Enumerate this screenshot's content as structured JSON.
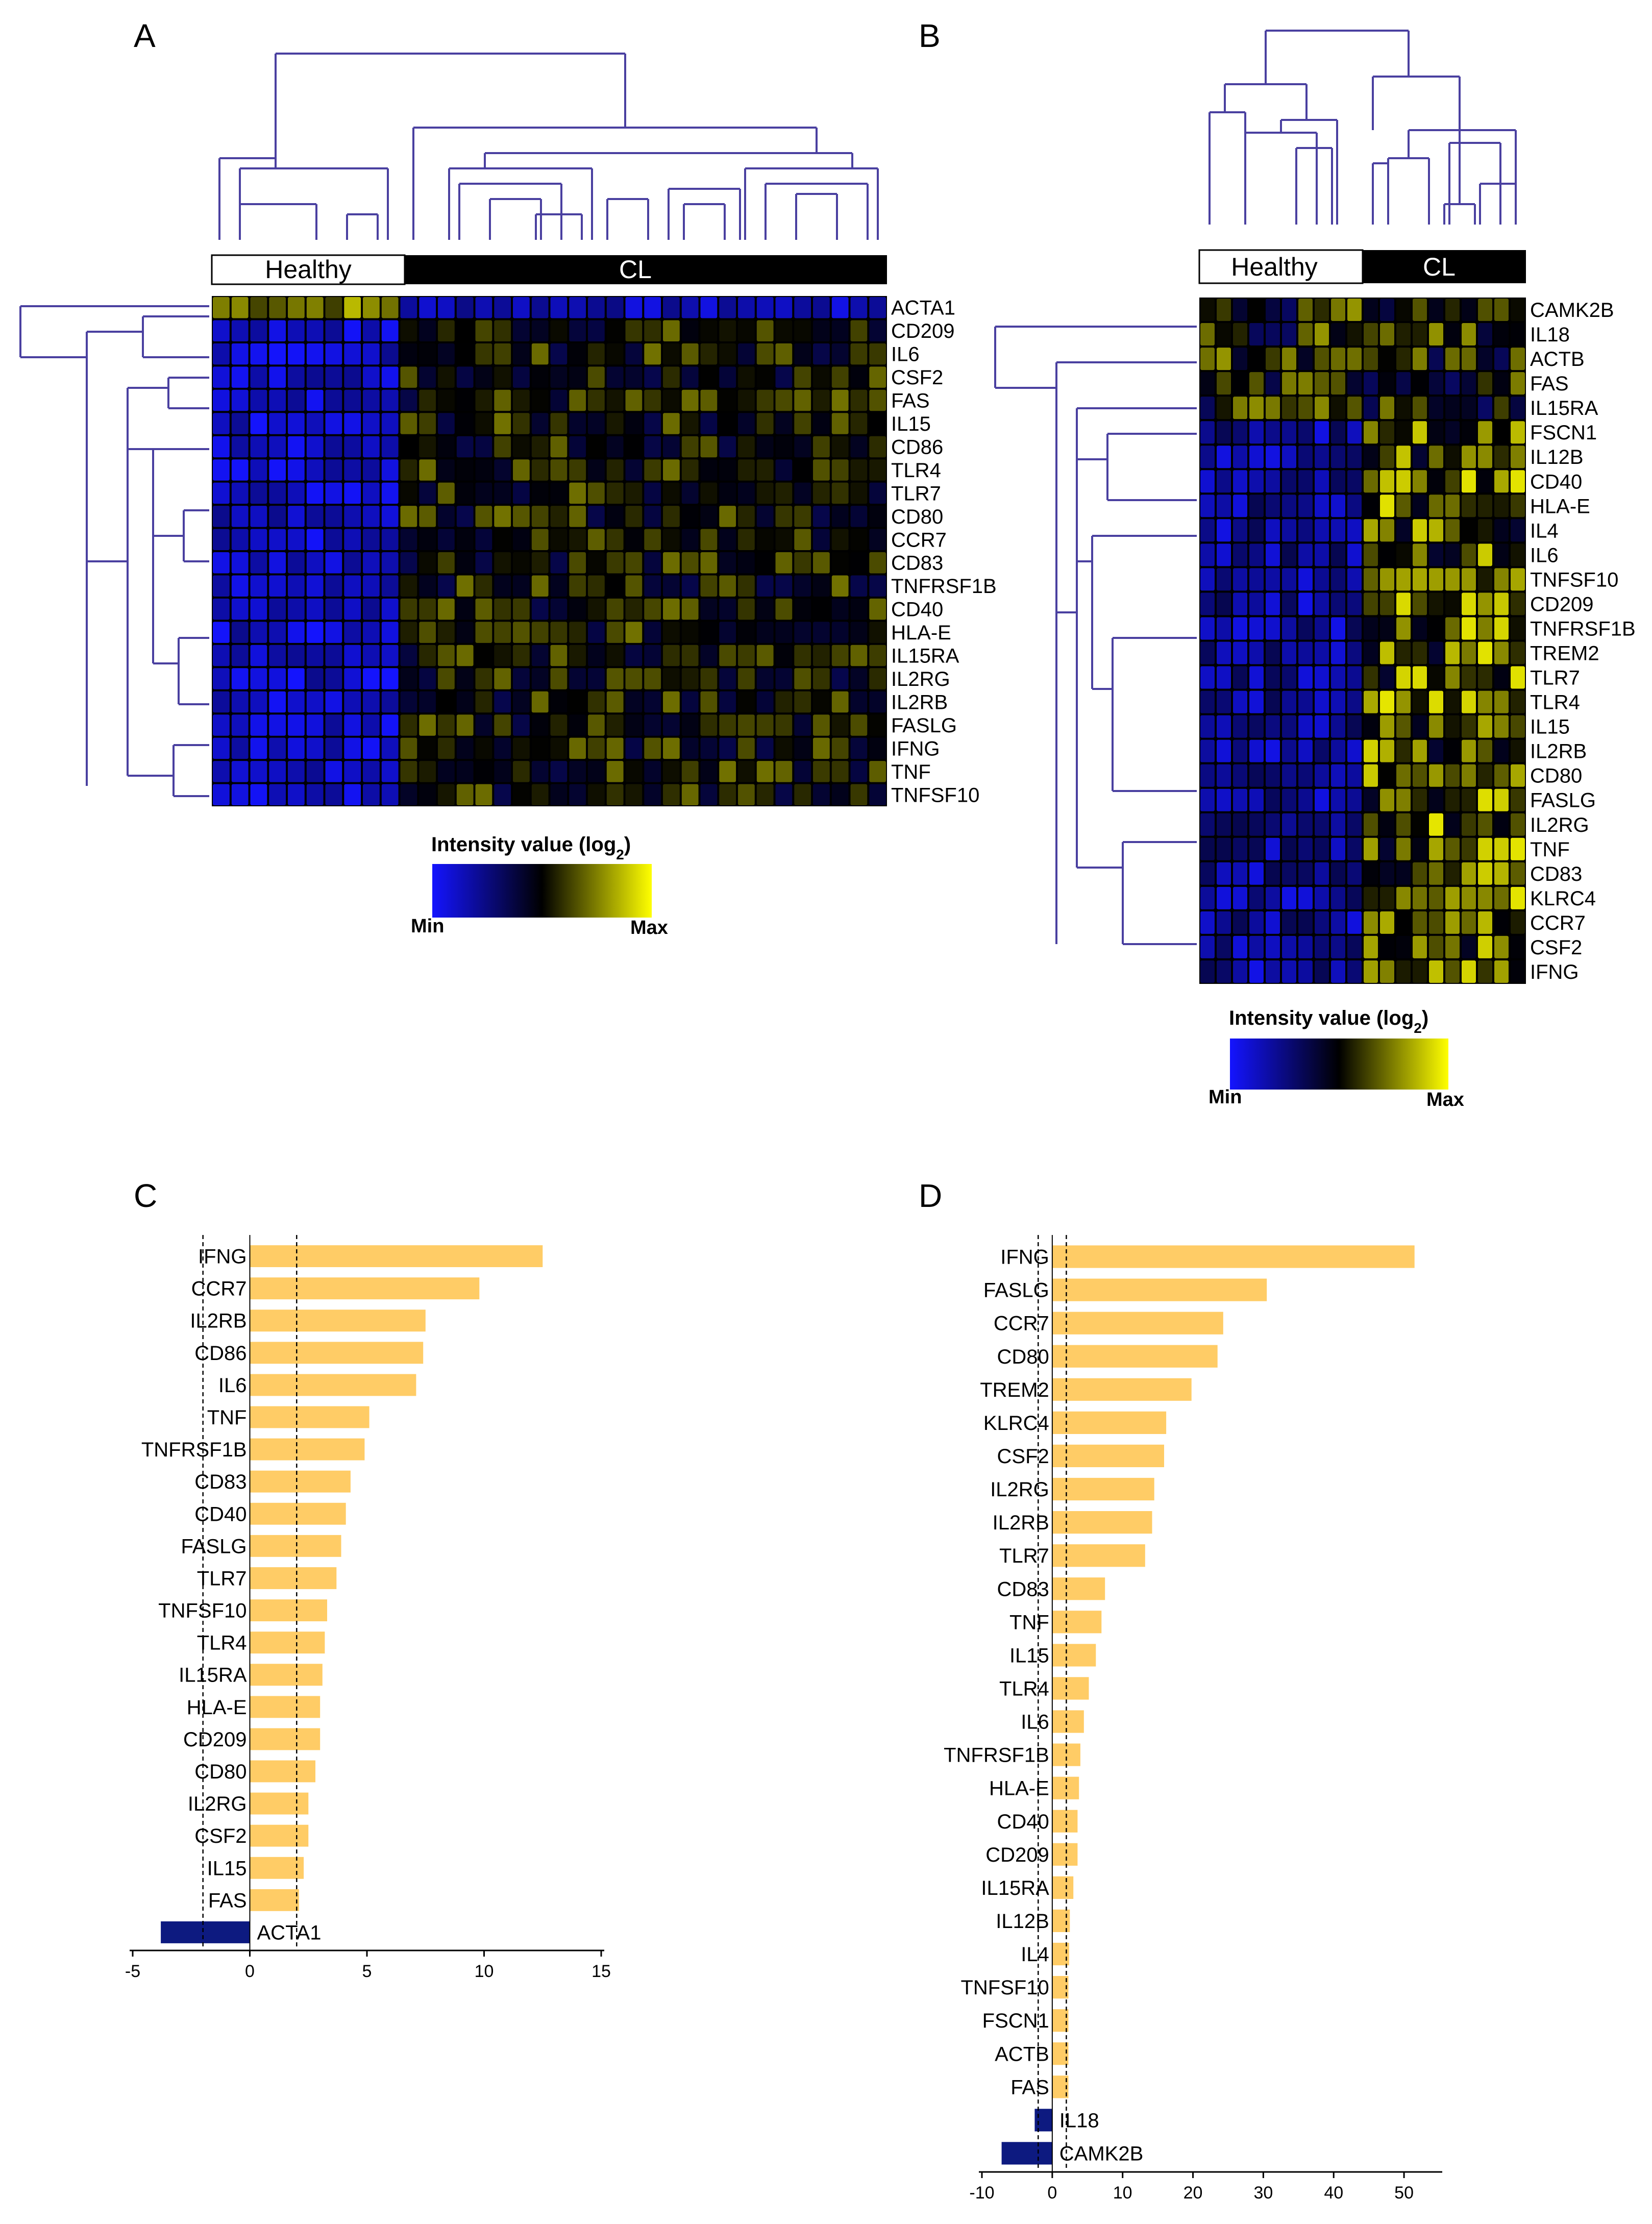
{
  "colors": {
    "low": "#1414ff",
    "mid": "#000000",
    "high": "#ffff00",
    "bar_up": "#ffcc66",
    "bar_down": "#0d1a80",
    "dendro": "#4a40a0"
  },
  "panel_a": {
    "letter": "A",
    "group_healthy": "Healthy",
    "group_cl": "CL",
    "n_healthy": 10,
    "n_cl": 26,
    "genes": [
      "ACTA1",
      "CD209",
      "IL6",
      "CSF2",
      "FAS",
      "IL15",
      "CD86",
      "TLR4",
      "TLR7",
      "CD80",
      "CCR7",
      "CD83",
      "TNFRSF1B",
      "CD40",
      "HLA-E",
      "IL15RA",
      "IL2RG",
      "IL2RB",
      "FASLG",
      "IFNG",
      "TNF",
      "TNFSF10"
    ],
    "legend": {
      "title": "Intensity value (log",
      "sub": "2",
      "close": ")",
      "min": "Min",
      "max": "Max"
    }
  },
  "panel_b": {
    "letter": "B",
    "group_healthy": "Healthy",
    "group_cl": "CL",
    "n_healthy": 10,
    "n_cl": 10,
    "genes": [
      "CAMK2B",
      "IL18",
      "ACTB",
      "FAS",
      "IL15RA",
      "FSCN1",
      "IL12B",
      "CD40",
      "HLA-E",
      "IL4",
      "IL6",
      "TNFSF10",
      "CD209",
      "TNFRSF1B",
      "TREM2",
      "TLR7",
      "TLR4",
      "IL15",
      "IL2RB",
      "CD80",
      "FASLG",
      "IL2RG",
      "TNF",
      "CD83",
      "KLRC4",
      "CCR7",
      "CSF2",
      "IFNG"
    ],
    "legend": {
      "title": "Intensity value (log",
      "sub": "2",
      "close": ")",
      "min": "Min",
      "max": "Max"
    }
  },
  "chart_data": [
    {
      "panel": "C",
      "type": "bar",
      "orientation": "horizontal",
      "categories": [
        "IFNG",
        "CCR7",
        "IL2RB",
        "CD86",
        "IL6",
        "TNF",
        "TNFRSF1B",
        "CD83",
        "CD40",
        "FASLG",
        "TLR7",
        "TNFSF10",
        "TLR4",
        "IL15RA",
        "HLA-E",
        "CD209",
        "CD80",
        "IL2RG",
        "CSF2",
        "IL15",
        "FAS",
        "ACTA1"
      ],
      "values": [
        12.5,
        9.8,
        7.5,
        7.4,
        7.1,
        5.1,
        4.9,
        4.3,
        4.1,
        3.9,
        3.7,
        3.3,
        3.2,
        3.1,
        3.0,
        3.0,
        2.8,
        2.5,
        2.5,
        2.3,
        2.1,
        -3.8
      ],
      "xlim": [
        -5,
        15
      ],
      "xticks": [
        "-5",
        "0",
        "5",
        "10",
        "15"
      ],
      "xtick_values": [
        -5,
        0,
        5,
        10,
        15
      ],
      "threshold": 2,
      "title": "",
      "xlabel": "",
      "ylabel": ""
    },
    {
      "panel": "D",
      "type": "bar",
      "orientation": "horizontal",
      "categories": [
        "IFNG",
        "FASLG",
        "CCR7",
        "CD80",
        "TREM2",
        "KLRC4",
        "CSF2",
        "IL2RG",
        "IL2RB",
        "TLR7",
        "CD83",
        "TNF",
        "IL15",
        "TLR4",
        "IL6",
        "TNFRSF1B",
        "HLA-E",
        "CD40",
        "CD209",
        "IL15RA",
        "IL12B",
        "IL4",
        "TNFSF10",
        "FSCN1",
        "ACTB",
        "FAS",
        "IL18",
        "CAMK2B"
      ],
      "values": [
        51.5,
        30.5,
        24.3,
        23.5,
        19.8,
        16.2,
        15.9,
        14.5,
        14.2,
        13.2,
        7.5,
        7.0,
        6.2,
        5.2,
        4.5,
        4.0,
        3.8,
        3.6,
        3.6,
        3.0,
        2.5,
        2.4,
        2.3,
        2.3,
        2.3,
        2.3,
        -2.5,
        -7.2
      ],
      "xlim": [
        -10,
        55
      ],
      "xticks": [
        "-10",
        "0",
        "10",
        "20",
        "30",
        "40",
        "50"
      ],
      "xtick_values": [
        -10,
        0,
        10,
        20,
        30,
        40,
        50
      ],
      "threshold": 2,
      "title": "",
      "xlabel": "",
      "ylabel": ""
    }
  ]
}
